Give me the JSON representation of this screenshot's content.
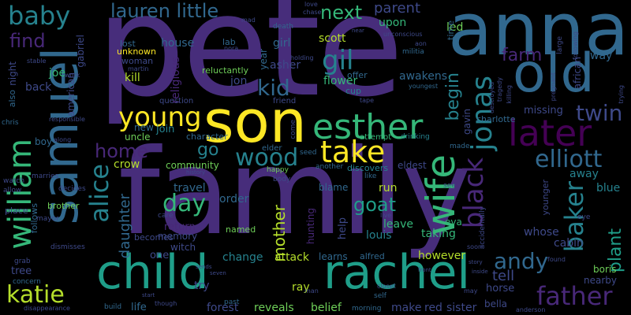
{
  "words": {
    "pete": "pete",
    "family": "family",
    "son": "son",
    "anna": "anna",
    "old": "old",
    "samuel": "samuel",
    "child": "child",
    "rachel": "rachel",
    "esther": "esther",
    "later": "later",
    "take": "take",
    "wife": "wife",
    "william": "william",
    "young": "young",
    "jonas": "jonas",
    "wood": "wood",
    "alice": "alice",
    "father": "father",
    "baby": "baby",
    "lauren_little": "lauren little",
    "gil": "gil",
    "kid": "kid",
    "black": "black",
    "twin": "twin",
    "elliott": "elliott",
    "baker": "baker",
    "day": "day",
    "andy": "andy",
    "katie": "katie",
    "next": "next",
    "find": "find",
    "home": "home",
    "farm": "farm",
    "begin": "begin",
    "goat": "goat",
    "plant": "plant",
    "go": "go",
    "mother": "mother",
    "daughter": "daughter",
    "tell": "tell",
    "parent": "parent",
    "led": "led",
    "joe": "joe",
    "scott": "scott",
    "girl": "girl",
    "asher": "asher",
    "awakens": "awakens",
    "religious": "religious",
    "jon": "jon",
    "flower": "flower",
    "kill": "kill",
    "woman": "woman",
    "house": "house",
    "upon": "upon",
    "back": "back",
    "way": "way",
    "african": "african",
    "missing": "missing",
    "charlotte": "charlotte",
    "gavin": "gavin",
    "new": "new",
    "uncle": "uncle",
    "join": "join",
    "crow": "crow",
    "community": "community",
    "eldest": "eldest",
    "boy": "boy",
    "travel": "travel",
    "order": "order",
    "run": "run",
    "leave": "leave",
    "louis": "louis",
    "eva": "eva",
    "blue": "blue",
    "away": "away",
    "cabin": "cabin",
    "whose": "whose",
    "nearby": "nearby",
    "boris": "boris",
    "memory": "memory",
    "return": "return",
    "witch": "witch",
    "becomes": "becomes",
    "one": "one",
    "change": "change",
    "attack": "attack",
    "learns": "learns",
    "alfred": "alfred",
    "however": "however",
    "taking": "taking",
    "try": "try",
    "life": "life",
    "forest": "forest",
    "reveals": "reveals",
    "ray": "ray",
    "belief": "belief",
    "make": "make",
    "red": "red",
    "sister": "sister",
    "bella": "bella",
    "horse": "horse",
    "tree": "tree",
    "brother": "brother",
    "blame": "blame",
    "help": "help",
    "hunting": "hunting",
    "named": "named",
    "year": "year",
    "night": "night",
    "also": "also",
    "american": "american",
    "gabriel": "gabriel",
    "lost": "lost",
    "unknown": "unknown",
    "martin": "martin",
    "reluctantly": "reluctantly",
    "lab": "lab",
    "offer": "offer",
    "cup": "cup",
    "friend": "friend",
    "question": "question",
    "character": "character",
    "elder": "elder",
    "attempt": "attempt",
    "drinking": "drinking",
    "made": "made",
    "discovers": "discovers",
    "another": "another",
    "see": "see",
    "like": "like",
    "happy": "happy",
    "body": "body",
    "seed": "seed",
    "come": "come",
    "place": "place",
    "follows": "follows",
    "allow": "allow",
    "watch": "watch",
    "chris": "chris",
    "marries": "marries",
    "decides": "decides",
    "mayor": "mayor",
    "dismisses": "dismisses",
    "grab": "grab",
    "concern": "concern",
    "disappearance": "disappearance",
    "build": "build",
    "though": "though",
    "past": "past",
    "morning": "morning",
    "self": "self",
    "closet": "closet",
    "man": "man",
    "may": "may",
    "anderson": "anderson",
    "soon": "soon",
    "younger": "younger",
    "eye": "eye",
    "found": "found",
    "care": "care",
    "accidentally": "accidentally",
    "time": "time",
    "large": "large",
    "pregnant": "pregnant",
    "following": "following",
    "trying": "trying",
    "destroyed": "destroyed",
    "tragedy": "tragedy",
    "killing": "killing",
    "youngest": "youngest",
    "militia": "militia",
    "aon": "aon",
    "nora": "nora",
    "holding": "holding",
    "tape": "tape",
    "responsible": "responsible",
    "death": "death",
    "love": "love",
    "chase": "chase",
    "mad": "mad",
    "unconscious": "unconscious",
    "along": "along",
    "work": "work",
    "stable": "stable",
    "history": "history",
    "start": "start",
    "sends": "sends",
    "live": "live",
    "story": "story",
    "seven": "seven",
    "near": "near",
    "inside": "inside",
    "front": "front"
  },
  "palette": {
    "yellow": "#fde725",
    "lime": "#b5de2b",
    "green": "#6ece58",
    "sea": "#35b779",
    "teal": "#1f9e89",
    "blue": "#26828e",
    "steel": "#31688e",
    "indigo": "#3e4989",
    "violet": "#482878",
    "purple": "#440154",
    "grape": "#472d7b"
  }
}
